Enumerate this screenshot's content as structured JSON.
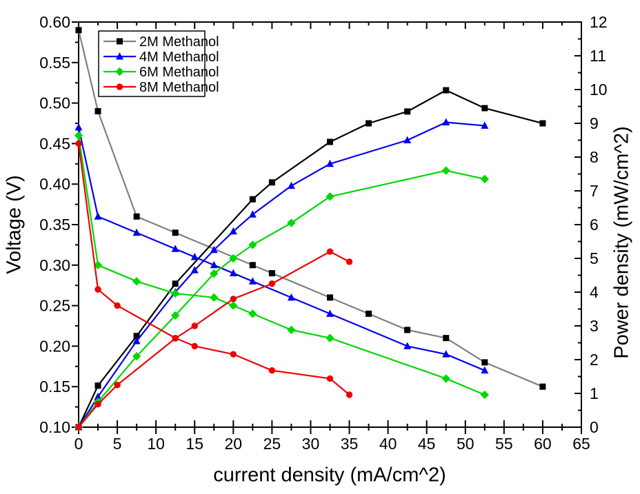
{
  "chart_data": {
    "type": "line",
    "title": "",
    "xlabel": "current density (mA/cm^2)",
    "ylabel_left": "Voltage (V)",
    "ylabel_right": "Power density (mW/cm^2)",
    "xlim": [
      0,
      65
    ],
    "ylim_left": [
      0.1,
      0.6
    ],
    "ylim_right": [
      0,
      12
    ],
    "x_tick_major": 5,
    "x_tick_minor": 2.5,
    "y_left_tick_major": 0.05,
    "y_left_tick_minor": 0.025,
    "y_right_tick_major": 1,
    "y_right_tick_minor": 0.5,
    "grid": "off",
    "legend_position": "top-left-inside",
    "axis_color": "#000000",
    "series": [
      {
        "name": "2M Methanol",
        "marker": "square",
        "marker_color": "#000000",
        "line_color_voltage": "#7f7f7f",
        "line_color_power": "#000000",
        "x": [
          0,
          2.5,
          7.5,
          12.5,
          22.5,
          25,
          32.5,
          37.5,
          42.5,
          47.5,
          52.5,
          60
        ],
        "voltage": [
          0.59,
          0.49,
          0.36,
          0.34,
          0.3,
          0.29,
          0.26,
          0.24,
          0.22,
          0.21,
          0.18,
          0.15
        ],
        "power": [
          0,
          1.23,
          2.7,
          4.25,
          6.75,
          7.25,
          8.45,
          9.0,
          9.35,
          9.98,
          9.45,
          9.0
        ]
      },
      {
        "name": "4M Methanol",
        "marker": "triangle-up",
        "marker_color": "#0000ee",
        "line_color_voltage": "#0000ee",
        "line_color_power": "#0000ee",
        "x": [
          0,
          2.5,
          7.5,
          12.5,
          15,
          17.5,
          20,
          22.5,
          27.5,
          32.5,
          42.5,
          47.5,
          52.5
        ],
        "voltage": [
          0.47,
          0.36,
          0.34,
          0.32,
          0.31,
          0.3,
          0.29,
          0.28,
          0.26,
          0.24,
          0.2,
          0.19,
          0.17
        ],
        "power": [
          0,
          0.9,
          2.55,
          4.0,
          4.65,
          5.25,
          5.8,
          6.3,
          7.15,
          7.8,
          8.5,
          9.03,
          8.93
        ]
      },
      {
        "name": "6M Methanol",
        "marker": "diamond",
        "marker_color": "#00d800",
        "line_color_voltage": "#00d800",
        "line_color_power": "#00d800",
        "x": [
          0,
          2.5,
          7.5,
          12.5,
          17.5,
          20,
          22.5,
          27.5,
          32.5,
          47.5,
          52.5
        ],
        "voltage": [
          0.46,
          0.3,
          0.28,
          0.265,
          0.26,
          0.25,
          0.24,
          0.22,
          0.21,
          0.16,
          0.14
        ],
        "power": [
          0,
          0.75,
          2.1,
          3.31,
          4.55,
          5.0,
          5.4,
          6.05,
          6.83,
          7.6,
          7.35
        ]
      },
      {
        "name": "8M Methanol",
        "marker": "circle",
        "marker_color": "#ee0000",
        "line_color_voltage": "#ee0000",
        "line_color_power": "#ee0000",
        "x": [
          0,
          2.5,
          5,
          12.5,
          15,
          20,
          25,
          32.5,
          35
        ],
        "voltage": [
          0.45,
          0.27,
          0.25,
          0.21,
          0.2,
          0.19,
          0.17,
          0.16,
          0.14
        ],
        "power": [
          0,
          0.68,
          1.25,
          2.63,
          3.0,
          3.8,
          4.25,
          5.2,
          4.9
        ]
      }
    ]
  }
}
